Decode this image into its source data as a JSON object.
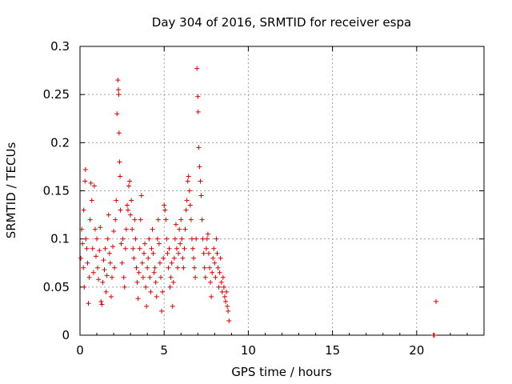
{
  "chart_data": {
    "type": "scatter",
    "title": "Day 304 of 2016, SRMTID for receiver espa",
    "xlabel": "GPS time / hours",
    "ylabel": "SRMTID / TECUs",
    "xlim": [
      0,
      24
    ],
    "ylim": [
      0,
      0.3
    ],
    "grid": true,
    "marker": "+",
    "color": "#e00000",
    "x_ticks": [
      0,
      5,
      10,
      15,
      20
    ],
    "x_tick_labels": [
      "0",
      "5",
      "10",
      "15",
      "20"
    ],
    "y_ticks": [
      0,
      0.05,
      0.1,
      0.15,
      0.2,
      0.25,
      0.3
    ],
    "y_tick_labels": [
      "0",
      "0.05",
      "0.1",
      "0.15",
      "0.2",
      "0.25",
      "0.3"
    ],
    "series": [
      {
        "name": "SRMTID espa",
        "points": [
          [
            0.05,
            0.08
          ],
          [
            0.1,
            0.11
          ],
          [
            0.15,
            0.095
          ],
          [
            0.2,
            0.07
          ],
          [
            0.22,
            0.13
          ],
          [
            0.25,
            0.05
          ],
          [
            0.3,
            0.16
          ],
          [
            0.32,
            0.172
          ],
          [
            0.35,
            0.1
          ],
          [
            0.4,
            0.09
          ],
          [
            0.45,
            0.075
          ],
          [
            0.5,
            0.033
          ],
          [
            0.55,
            0.06
          ],
          [
            0.6,
            0.12
          ],
          [
            0.65,
            0.158
          ],
          [
            0.7,
            0.14
          ],
          [
            0.75,
            0.09
          ],
          [
            0.8,
            0.065
          ],
          [
            0.85,
            0.155
          ],
          [
            0.9,
            0.11
          ],
          [
            0.95,
            0.082
          ],
          [
            1.0,
            0.1
          ],
          [
            1.05,
            0.07
          ],
          [
            1.1,
            0.058
          ],
          [
            1.15,
            0.088
          ],
          [
            1.2,
            0.112
          ],
          [
            1.25,
            0.035
          ],
          [
            1.3,
            0.032
          ],
          [
            1.35,
            0.055
          ],
          [
            1.4,
            0.078
          ],
          [
            1.45,
            0.068
          ],
          [
            1.5,
            0.09
          ],
          [
            1.55,
            0.045
          ],
          [
            1.6,
            0.062
          ],
          [
            1.65,
            0.1
          ],
          [
            1.7,
            0.125
          ],
          [
            1.75,
            0.085
          ],
          [
            1.8,
            0.075
          ],
          [
            1.85,
            0.04
          ],
          [
            1.9,
            0.06
          ],
          [
            1.95,
            0.092
          ],
          [
            2.0,
            0.108
          ],
          [
            2.05,
            0.07
          ],
          [
            2.1,
            0.12
          ],
          [
            2.15,
            0.14
          ],
          [
            2.2,
            0.23
          ],
          [
            2.25,
            0.265
          ],
          [
            2.28,
            0.255
          ],
          [
            2.3,
            0.25
          ],
          [
            2.32,
            0.21
          ],
          [
            2.35,
            0.18
          ],
          [
            2.38,
            0.165
          ],
          [
            2.4,
            0.13
          ],
          [
            2.45,
            0.095
          ],
          [
            2.5,
            0.075
          ],
          [
            2.55,
            0.1
          ],
          [
            2.6,
            0.06
          ],
          [
            2.65,
            0.05
          ],
          [
            2.7,
            0.09
          ],
          [
            2.75,
            0.11
          ],
          [
            2.8,
            0.135
          ],
          [
            2.85,
            0.13
          ],
          [
            2.9,
            0.155
          ],
          [
            2.95,
            0.16
          ],
          [
            3.0,
            0.125
          ],
          [
            3.05,
            0.14
          ],
          [
            3.1,
            0.11
          ],
          [
            3.15,
            0.09
          ],
          [
            3.2,
            0.08
          ],
          [
            3.25,
            0.12
          ],
          [
            3.3,
            0.1
          ],
          [
            3.35,
            0.07
          ],
          [
            3.4,
            0.055
          ],
          [
            3.45,
            0.038
          ],
          [
            3.5,
            0.065
          ],
          [
            3.55,
            0.09
          ],
          [
            3.6,
            0.12
          ],
          [
            3.65,
            0.145
          ],
          [
            3.7,
            0.075
          ],
          [
            3.75,
            0.06
          ],
          [
            3.8,
            0.085
          ],
          [
            3.85,
            0.095
          ],
          [
            3.9,
            0.05
          ],
          [
            3.95,
            0.03
          ],
          [
            4.0,
            0.07
          ],
          [
            4.05,
            0.08
          ],
          [
            4.1,
            0.1
          ],
          [
            4.15,
            0.06
          ],
          [
            4.2,
            0.045
          ],
          [
            4.25,
            0.09
          ],
          [
            4.3,
            0.11
          ],
          [
            4.35,
            0.085
          ],
          [
            4.4,
            0.065
          ],
          [
            4.45,
            0.07
          ],
          [
            4.5,
            0.055
          ],
          [
            4.55,
            0.04
          ],
          [
            4.6,
            0.1
          ],
          [
            4.65,
            0.12
          ],
          [
            4.7,
            0.095
          ],
          [
            4.75,
            0.075
          ],
          [
            4.8,
            0.06
          ],
          [
            4.85,
            0.025
          ],
          [
            4.9,
            0.045
          ],
          [
            4.95,
            0.08
          ],
          [
            5.0,
            0.135
          ],
          [
            5.05,
            0.13
          ],
          [
            5.1,
            0.12
          ],
          [
            5.15,
            0.1
          ],
          [
            5.2,
            0.085
          ],
          [
            5.25,
            0.07
          ],
          [
            5.3,
            0.09
          ],
          [
            5.35,
            0.05
          ],
          [
            5.4,
            0.06
          ],
          [
            5.45,
            0.075
          ],
          [
            5.5,
            0.03
          ],
          [
            5.55,
            0.055
          ],
          [
            5.6,
            0.08
          ],
          [
            5.65,
            0.1
          ],
          [
            5.7,
            0.115
          ],
          [
            5.75,
            0.09
          ],
          [
            5.8,
            0.07
          ],
          [
            5.85,
            0.085
          ],
          [
            5.9,
            0.11
          ],
          [
            5.95,
            0.095
          ],
          [
            6.0,
            0.12
          ],
          [
            6.05,
            0.1
          ],
          [
            6.1,
            0.08
          ],
          [
            6.15,
            0.07
          ],
          [
            6.2,
            0.09
          ],
          [
            6.25,
            0.11
          ],
          [
            6.3,
            0.13
          ],
          [
            6.35,
            0.14
          ],
          [
            6.4,
            0.16
          ],
          [
            6.45,
            0.165
          ],
          [
            6.5,
            0.15
          ],
          [
            6.55,
            0.135
          ],
          [
            6.6,
            0.12
          ],
          [
            6.65,
            0.1
          ],
          [
            6.7,
            0.09
          ],
          [
            6.75,
            0.08
          ],
          [
            6.8,
            0.07
          ],
          [
            6.85,
            0.06
          ],
          [
            6.9,
            0.1
          ],
          [
            6.95,
            0.277
          ],
          [
            7.0,
            0.248
          ],
          [
            7.02,
            0.232
          ],
          [
            7.05,
            0.195
          ],
          [
            7.1,
            0.175
          ],
          [
            7.15,
            0.16
          ],
          [
            7.2,
            0.145
          ],
          [
            7.25,
            0.12
          ],
          [
            7.3,
            0.1
          ],
          [
            7.35,
            0.085
          ],
          [
            7.4,
            0.07
          ],
          [
            7.45,
            0.06
          ],
          [
            7.5,
            0.09
          ],
          [
            7.55,
            0.1
          ],
          [
            7.6,
            0.105
          ],
          [
            7.65,
            0.085
          ],
          [
            7.7,
            0.07
          ],
          [
            7.75,
            0.055
          ],
          [
            7.8,
            0.04
          ],
          [
            7.85,
            0.065
          ],
          [
            7.9,
            0.08
          ],
          [
            7.95,
            0.09
          ],
          [
            8.0,
            0.075
          ],
          [
            8.05,
            0.06
          ],
          [
            8.1,
            0.1
          ],
          [
            8.15,
            0.085
          ],
          [
            8.2,
            0.07
          ],
          [
            8.25,
            0.05
          ],
          [
            8.3,
            0.065
          ],
          [
            8.35,
            0.08
          ],
          [
            8.4,
            0.055
          ],
          [
            8.45,
            0.045
          ],
          [
            8.5,
            0.06
          ],
          [
            8.55,
            0.05
          ],
          [
            8.6,
            0.04
          ],
          [
            8.65,
            0.035
          ],
          [
            8.7,
            0.045
          ],
          [
            8.75,
            0.03
          ],
          [
            8.8,
            0.025
          ],
          [
            8.85,
            0.015
          ],
          [
            21.0,
            0.0
          ],
          [
            21.05,
            0.0
          ],
          [
            21.15,
            0.035
          ]
        ]
      }
    ]
  }
}
